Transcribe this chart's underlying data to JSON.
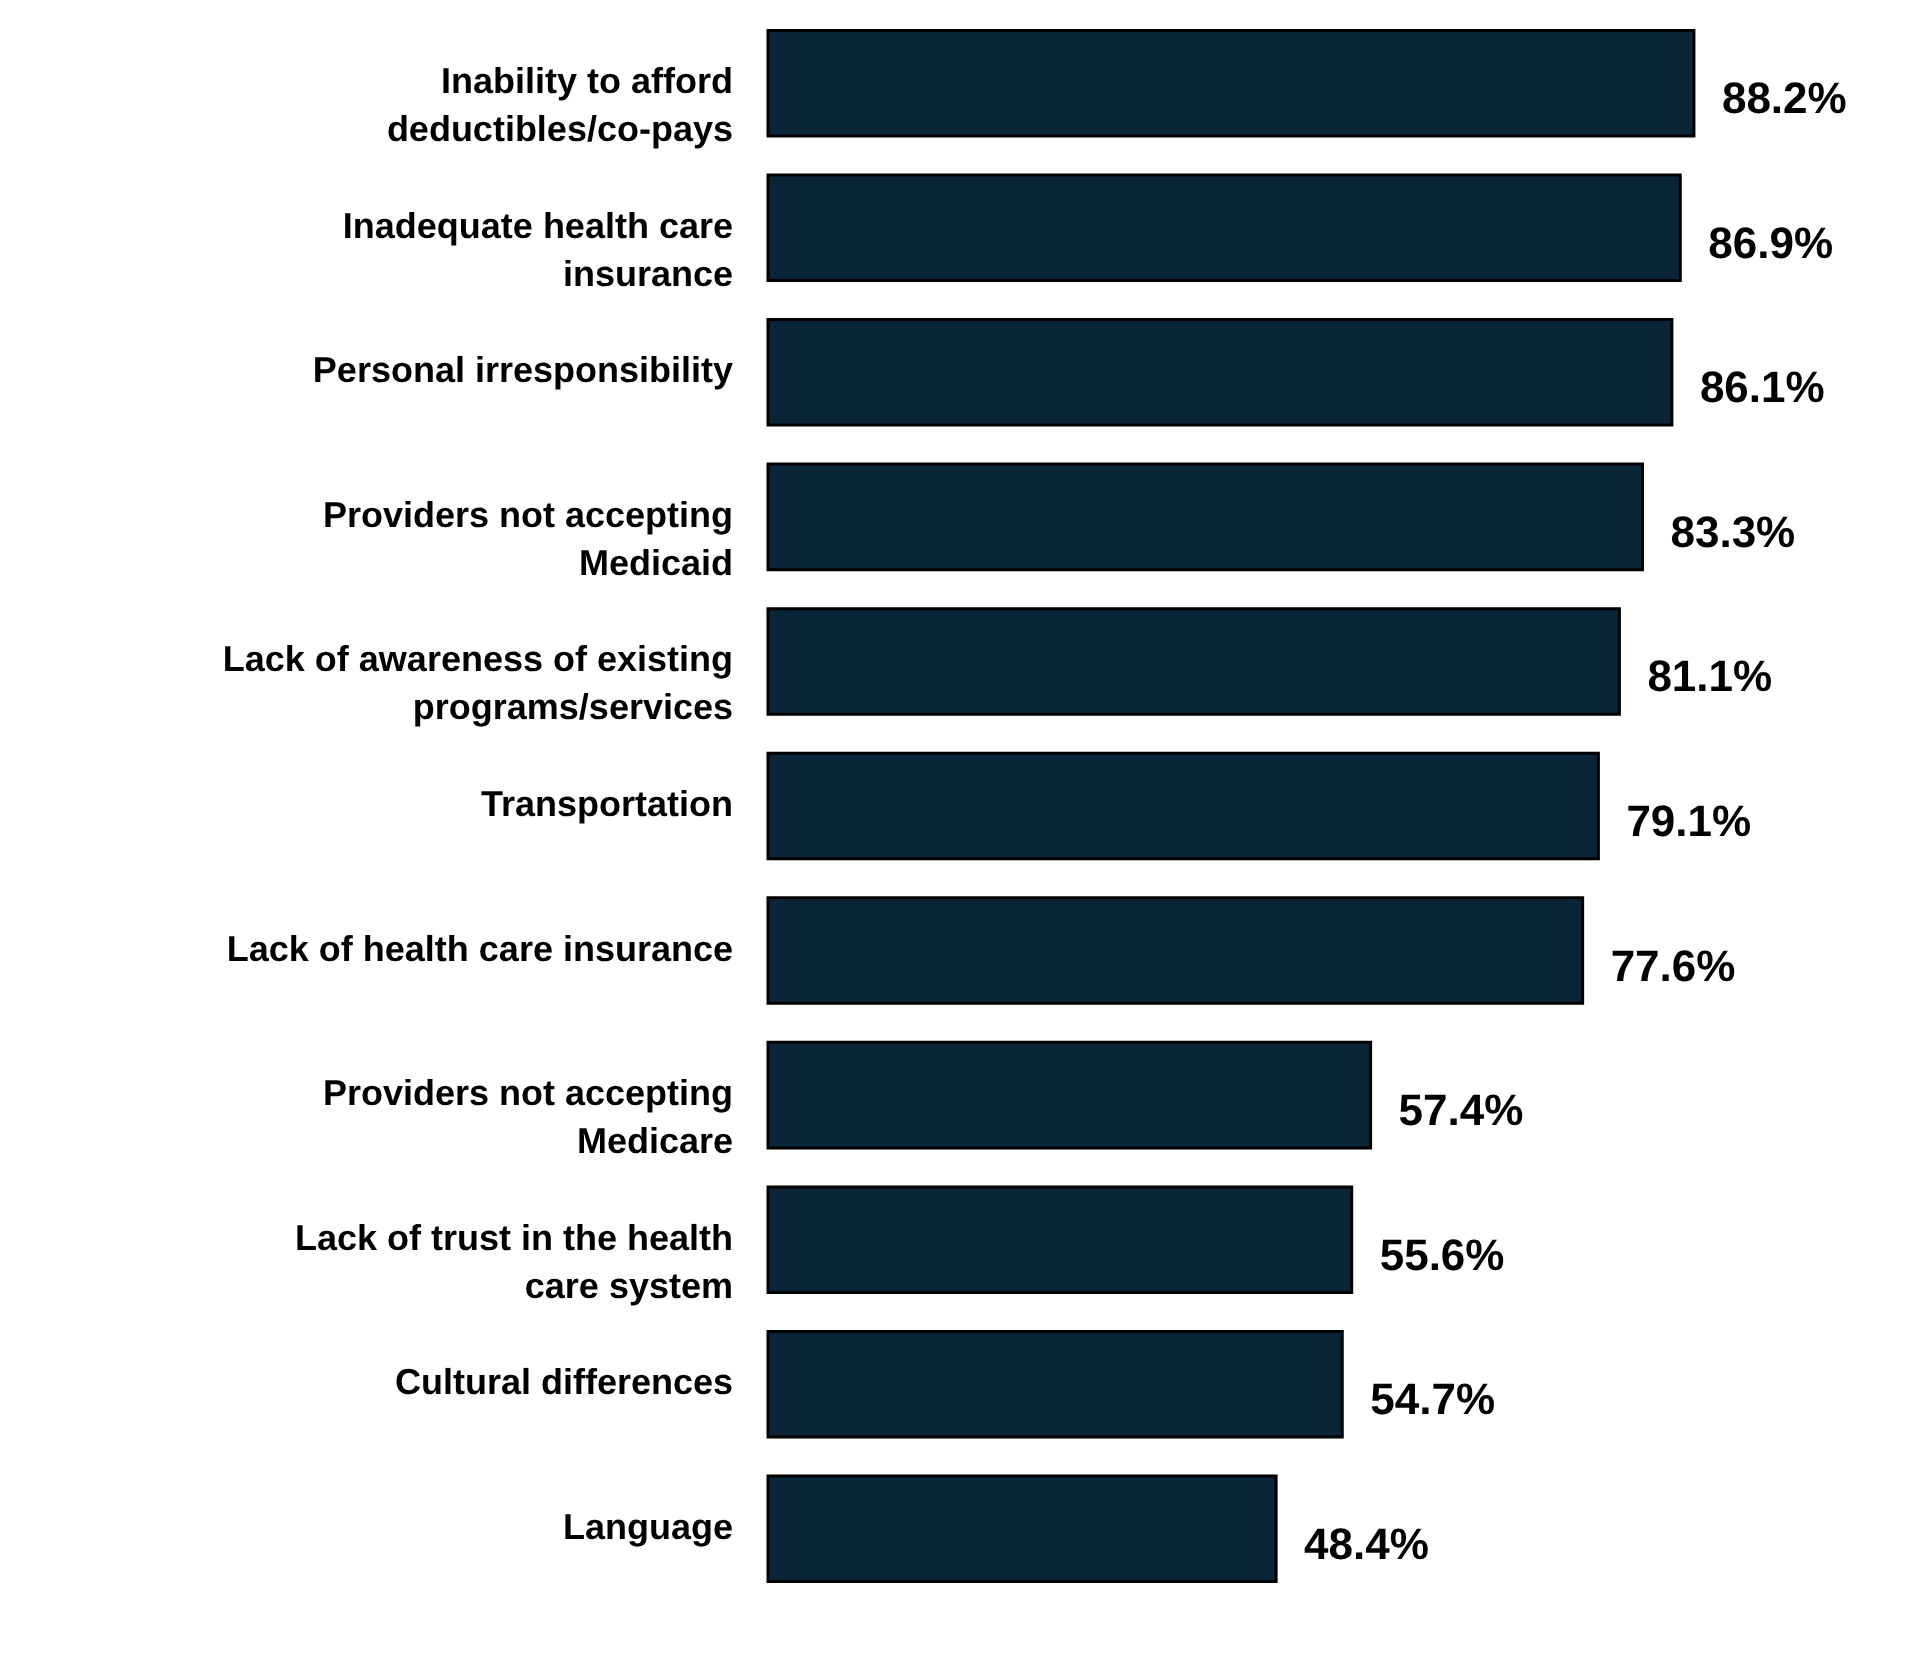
{
  "chart_data": {
    "type": "bar",
    "orientation": "horizontal",
    "categories": [
      "Inability to afford deductibles/co-pays",
      "Inadequate health care insurance",
      "Personal irresponsibility",
      "Providers not accepting Medicaid",
      "Lack of awareness of existing programs/services",
      "Transportation",
      "Lack of health care insurance",
      "Providers not accepting Medicare",
      "Lack of trust in the health care system",
      "Cultural differences",
      "Language"
    ],
    "values": [
      88.2,
      86.9,
      86.1,
      83.3,
      81.1,
      79.1,
      77.6,
      57.4,
      55.6,
      54.7,
      48.4
    ],
    "value_labels": [
      "88.2%",
      "86.9%",
      "86.1%",
      "83.3%",
      "81.1%",
      "79.1%",
      "77.6%",
      "57.4%",
      "55.6%",
      "54.7%",
      "48.4%"
    ],
    "color": "#0b2538",
    "tick_labels": "y"
  }
}
